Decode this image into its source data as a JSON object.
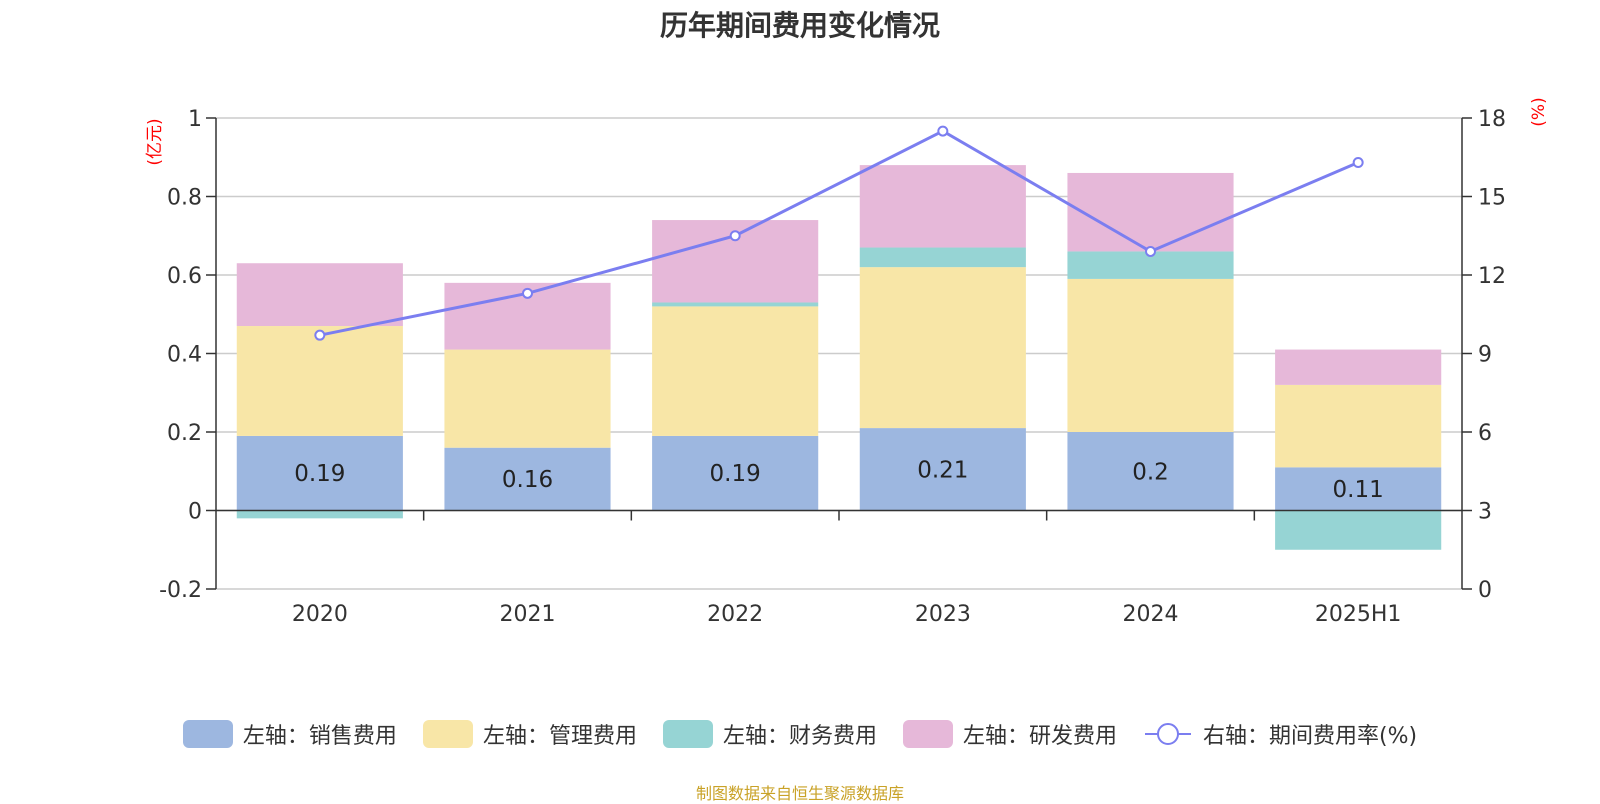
{
  "title": "历年期间费用变化情况",
  "source": "制图数据来自恒生聚源数据库",
  "chart_data": {
    "type": "bar",
    "stacked": true,
    "categories": [
      "2020",
      "2021",
      "2022",
      "2023",
      "2024",
      "2025H1"
    ],
    "y_left": {
      "unit": "(亿元)",
      "ylim": [
        -0.2,
        1
      ],
      "ticks": [
        "-0.2",
        "0",
        "0.2",
        "0.4",
        "0.6",
        "0.8",
        "1"
      ]
    },
    "y_right": {
      "unit": "(%)",
      "ylim": [
        0,
        18
      ],
      "ticks": [
        "0",
        "3",
        "6",
        "9",
        "12",
        "15",
        "18"
      ]
    },
    "grid": true,
    "legend_position": "bottom",
    "series": [
      {
        "name": "左轴：销售费用",
        "axis": "left",
        "type": "bar",
        "color": "#9db7e0",
        "values": [
          0.19,
          0.16,
          0.19,
          0.21,
          0.2,
          0.11
        ],
        "labels": [
          "0.19",
          "0.16",
          "0.19",
          "0.21",
          "0.2",
          "0.11"
        ]
      },
      {
        "name": "左轴：管理费用",
        "axis": "left",
        "type": "bar",
        "color": "#f8e6a7",
        "values": [
          0.28,
          0.25,
          0.33,
          0.41,
          0.39,
          0.21
        ]
      },
      {
        "name": "左轴：财务费用",
        "axis": "left",
        "type": "bar",
        "color": "#96d4d4",
        "values": [
          -0.02,
          0.0,
          0.01,
          0.05,
          0.07,
          -0.1
        ]
      },
      {
        "name": "左轴：研发费用",
        "axis": "left",
        "type": "bar",
        "color": "#e6b8d9",
        "values": [
          0.16,
          0.17,
          0.21,
          0.21,
          0.2,
          0.09
        ]
      },
      {
        "name": "右轴：期间费用率(%)",
        "axis": "right",
        "type": "line",
        "color": "#7b7ef0",
        "values": [
          9.7,
          11.3,
          13.5,
          17.5,
          12.9,
          16.3
        ]
      }
    ]
  }
}
